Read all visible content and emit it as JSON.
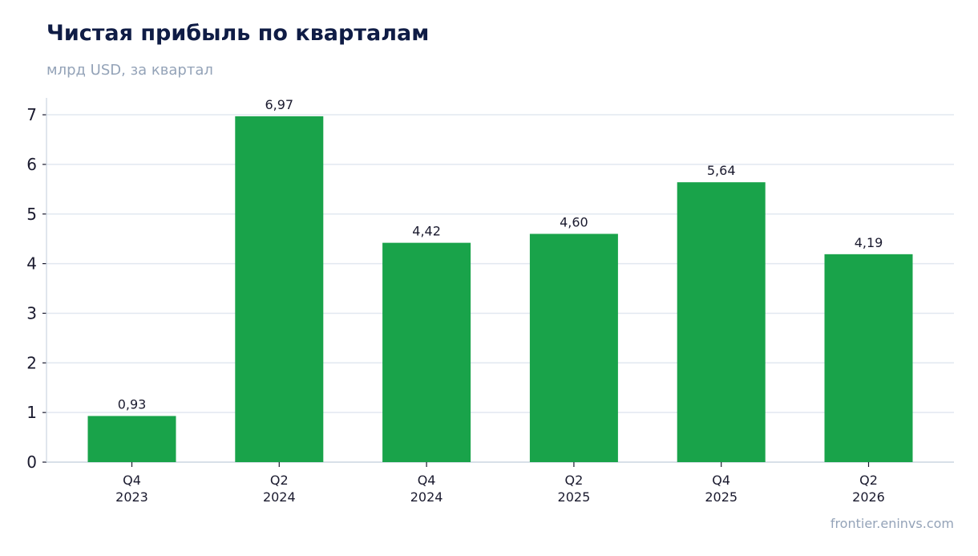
{
  "header": {
    "title": "Чистая прибыль по кварталам",
    "subtitle": "млрд USD, за квартал"
  },
  "footer": {
    "source": "frontier.eninvs.com"
  },
  "colors": {
    "bar": "#19a34a",
    "grid": "#e2e8f0",
    "axis": "#cbd5e1",
    "text": "#1a1a2e"
  },
  "chart_data": {
    "type": "bar",
    "title": "Чистая прибыль по кварталам",
    "subtitle": "млрд USD, за квартал",
    "categories": [
      [
        "Q4",
        "2023"
      ],
      [
        "Q2",
        "2024"
      ],
      [
        "Q4",
        "2024"
      ],
      [
        "Q2",
        "2025"
      ],
      [
        "Q4",
        "2025"
      ],
      [
        "Q2",
        "2026"
      ]
    ],
    "values": [
      0.93,
      6.97,
      4.42,
      4.6,
      5.64,
      4.19
    ],
    "value_labels": [
      "0,93",
      "6,97",
      "4,42",
      "4,60",
      "5,64",
      "4,19"
    ],
    "yticks": [
      0,
      1,
      2,
      3,
      4,
      5,
      6,
      7
    ],
    "ylim": [
      0,
      7.3
    ],
    "grid": true,
    "legend": "none"
  }
}
